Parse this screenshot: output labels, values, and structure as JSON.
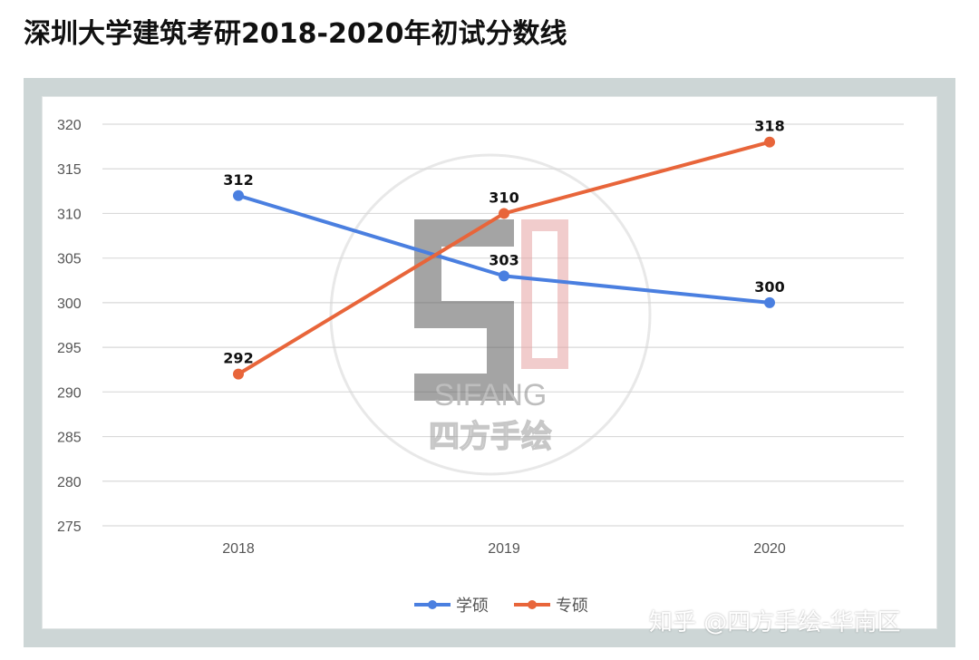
{
  "page_title": "深圳大学建筑考研2018-2020年初试分数线",
  "watermark": {
    "brand_text": "SIFANG",
    "brand_cn": "四方手绘"
  },
  "footer_watermark": "知乎 @四方手绘-华南区",
  "colors": {
    "series_blue": "#4a7fe0",
    "series_orange": "#e8653a",
    "grid": "#d9d9d9",
    "frame": "#cdd6d6"
  },
  "chart_data": {
    "type": "line",
    "title": "",
    "xlabel": "",
    "ylabel": "",
    "categories": [
      "2018",
      "2019",
      "2020"
    ],
    "ylim": [
      275,
      320
    ],
    "yticks": [
      320,
      315,
      310,
      305,
      300,
      295,
      290,
      285,
      280,
      275
    ],
    "grid": true,
    "legend_position": "bottom",
    "series": [
      {
        "name": "学硕",
        "color": "#4a7fe0",
        "values": [
          312,
          303,
          300
        ]
      },
      {
        "name": "专硕",
        "color": "#e8653a",
        "values": [
          292,
          310,
          318
        ]
      }
    ]
  }
}
